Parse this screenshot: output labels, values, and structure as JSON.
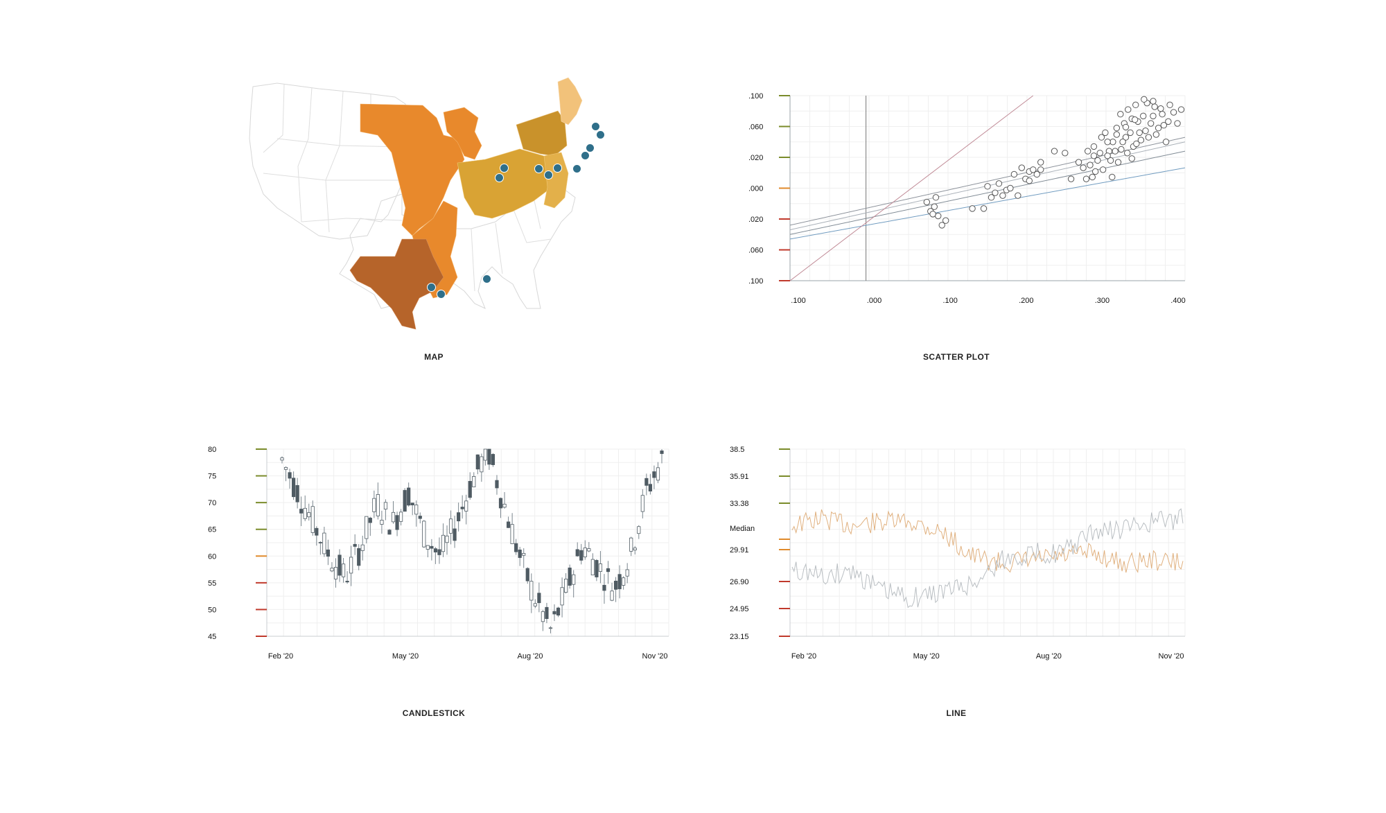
{
  "panels": {
    "map": {
      "title": "MAP"
    },
    "scatter": {
      "title": "SCATTER PLOT"
    },
    "candle": {
      "title": "CANDLESTICK"
    },
    "line": {
      "title": "LINE"
    }
  },
  "colors": {
    "axis_tick_high": "#7a8b2a",
    "axis_tick_mid": "#e08a2b",
    "axis_tick_low": "#c0392b",
    "map_orange": "#e8892c",
    "map_brown": "#b6642a",
    "map_gold": "#d9a334",
    "map_olive": "#c9922b",
    "map_light": "#f2c27a",
    "pin": "#2f6f8a",
    "candle_up": "#ffffff",
    "candle_down": "#4f5b63",
    "line_gray": "#b9bec2",
    "line_orange": "#e0b07e"
  },
  "icons": [
    "pin-icon"
  ],
  "chart_data": [
    {
      "type": "scatter",
      "x_ticks": [
        ".100",
        ".000",
        ".100",
        ".200",
        ".300",
        ".400"
      ],
      "y_ticks": [
        ".100",
        ".060",
        ".020",
        ".000",
        ".020",
        ".060",
        ".100"
      ],
      "xlim": [
        -0.1,
        0.42
      ],
      "ylim": [
        -0.1,
        0.1
      ],
      "points": [
        [
          0.08,
          -0.015
        ],
        [
          0.085,
          -0.025
        ],
        [
          0.09,
          -0.02
        ],
        [
          0.095,
          -0.03
        ],
        [
          0.1,
          -0.04
        ],
        [
          0.092,
          -0.01
        ],
        [
          0.088,
          -0.028
        ],
        [
          0.105,
          -0.035
        ],
        [
          0.14,
          -0.022
        ],
        [
          0.155,
          -0.022
        ],
        [
          0.165,
          -0.01
        ],
        [
          0.17,
          -0.005
        ],
        [
          0.18,
          -0.008
        ],
        [
          0.185,
          -0.002
        ],
        [
          0.19,
          0.0
        ],
        [
          0.2,
          -0.008
        ],
        [
          0.21,
          0.01
        ],
        [
          0.215,
          0.018
        ],
        [
          0.22,
          0.02
        ],
        [
          0.23,
          0.028
        ],
        [
          0.195,
          0.015
        ],
        [
          0.205,
          0.022
        ],
        [
          0.175,
          0.005
        ],
        [
          0.16,
          0.002
        ],
        [
          0.248,
          0.04
        ],
        [
          0.262,
          0.038
        ],
        [
          0.23,
          0.02
        ],
        [
          0.225,
          0.015
        ],
        [
          0.215,
          0.008
        ],
        [
          0.27,
          0.01
        ],
        [
          0.28,
          0.028
        ],
        [
          0.29,
          0.01
        ],
        [
          0.295,
          0.025
        ],
        [
          0.3,
          0.045
        ],
        [
          0.305,
          0.03
        ],
        [
          0.31,
          0.055
        ],
        [
          0.312,
          0.02
        ],
        [
          0.315,
          0.06
        ],
        [
          0.32,
          0.04
        ],
        [
          0.322,
          0.03
        ],
        [
          0.325,
          0.05
        ],
        [
          0.33,
          0.065
        ],
        [
          0.335,
          0.08
        ],
        [
          0.34,
          0.07
        ],
        [
          0.342,
          0.055
        ],
        [
          0.345,
          0.085
        ],
        [
          0.35,
          0.075
        ],
        [
          0.352,
          0.045
        ],
        [
          0.355,
          0.09
        ],
        [
          0.36,
          0.06
        ],
        [
          0.365,
          0.078
        ],
        [
          0.37,
          0.092
        ],
        [
          0.375,
          0.07
        ],
        [
          0.38,
          0.088
        ],
        [
          0.385,
          0.065
        ],
        [
          0.39,
          0.08
        ],
        [
          0.395,
          0.05
        ],
        [
          0.4,
          0.09
        ],
        [
          0.405,
          0.082
        ],
        [
          0.41,
          0.07
        ],
        [
          0.415,
          0.085
        ],
        [
          0.328,
          0.04
        ],
        [
          0.338,
          0.05
        ],
        [
          0.348,
          0.06
        ],
        [
          0.358,
          0.072
        ],
        [
          0.368,
          0.062
        ],
        [
          0.378,
          0.078
        ],
        [
          0.302,
          0.018
        ],
        [
          0.318,
          0.035
        ],
        [
          0.332,
          0.028
        ],
        [
          0.344,
          0.038
        ],
        [
          0.356,
          0.048
        ],
        [
          0.286,
          0.022
        ],
        [
          0.298,
          0.012
        ],
        [
          0.308,
          0.038
        ],
        [
          0.324,
          0.012
        ],
        [
          0.336,
          0.042
        ],
        [
          0.35,
          0.032
        ],
        [
          0.362,
          0.052
        ],
        [
          0.372,
          0.055
        ],
        [
          0.382,
          0.058
        ],
        [
          0.392,
          0.068
        ],
        [
          0.398,
          0.072
        ],
        [
          0.388,
          0.086
        ],
        [
          0.378,
          0.094
        ],
        [
          0.366,
          0.096
        ],
        [
          0.354,
          0.074
        ],
        [
          0.342,
          0.066
        ],
        [
          0.33,
          0.058
        ],
        [
          0.318,
          0.05
        ],
        [
          0.3,
          0.035
        ],
        [
          0.292,
          0.04
        ]
      ],
      "lines": [
        {
          "x": [
            -0.1,
            0.42
          ],
          "y": [
            -0.04,
            0.055
          ],
          "color": "#8a9099"
        },
        {
          "x": [
            -0.1,
            0.42
          ],
          "y": [
            -0.045,
            0.05
          ],
          "color": "#a9b0b8"
        },
        {
          "x": [
            -0.1,
            0.42
          ],
          "y": [
            -0.05,
            0.04
          ],
          "color": "#7f8a94"
        },
        {
          "x": [
            -0.1,
            0.42
          ],
          "y": [
            -0.055,
            0.022
          ],
          "color": "#6e9abf"
        },
        {
          "x": [
            -0.1,
            0.22
          ],
          "y": [
            -0.1,
            0.1
          ],
          "color": "#c08a96"
        }
      ]
    },
    {
      "type": "candlestick",
      "y_ticks": [
        "80",
        "75",
        "70",
        "65",
        "60",
        "55",
        "50",
        "45"
      ],
      "ylim": [
        45,
        80
      ],
      "x_ticks": [
        "Feb '20",
        "May '20",
        "Aug '20",
        "Nov '20"
      ],
      "n_candles": 100
    },
    {
      "type": "line",
      "y_ticks": [
        "38.5",
        "35.91",
        "33.38",
        "29.91",
        "26.90",
        "24.95",
        "23.15"
      ],
      "median_label": "Median",
      "ylim": [
        23.15,
        38.5
      ],
      "x_ticks": [
        "Feb '20",
        "May '20",
        "Aug '20",
        "Nov '20"
      ]
    }
  ]
}
